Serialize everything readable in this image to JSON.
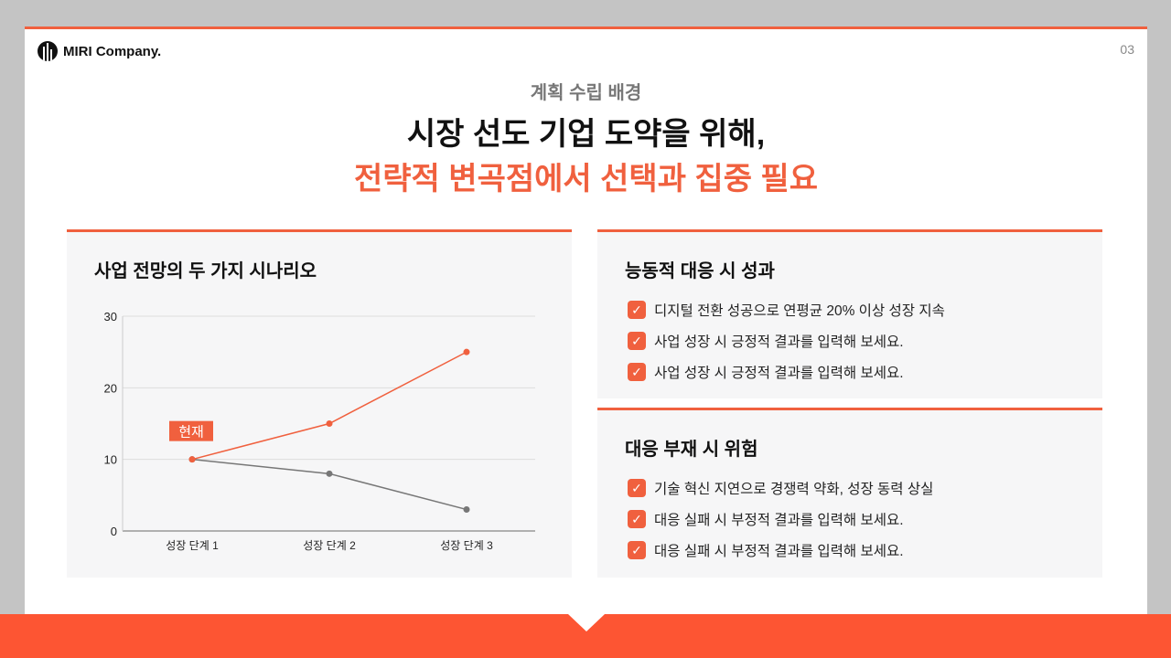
{
  "header": {
    "logo_text": "MIRI Company.",
    "page_number": "03"
  },
  "title": {
    "subtitle": "계획 수립 배경",
    "line1": "시장 선도 기업 도약을 위해,",
    "line2": "전략적 변곡점에서 선택과 집중 필요"
  },
  "chart_card": {
    "title": "사업 전망의 두 가지 시나리오"
  },
  "chart_data": {
    "type": "line",
    "categories": [
      "성장 단계 1",
      "성장 단계 2",
      "성장 단계 3"
    ],
    "series": [
      {
        "values": [
          10,
          15,
          25
        ],
        "color": "#f0603e"
      },
      {
        "values": [
          10,
          8,
          3
        ],
        "color": "#777777"
      }
    ],
    "yticks": [
      0,
      10,
      20,
      30
    ],
    "ylim": [
      0,
      30
    ],
    "grid": true,
    "annotation": {
      "text": "현재",
      "category": "성장 단계 1"
    }
  },
  "positive": {
    "title": "능동적 대응 시 성과",
    "items": [
      "디지털 전환 성공으로 연평균 20% 이상 성장 지속",
      "사업 성장 시 긍정적 결과를 입력해 보세요.",
      "사업 성장 시 긍정적 결과를 입력해 보세요."
    ]
  },
  "negative": {
    "title": "대응 부재 시 위험",
    "items": [
      "기술 혁신 지연으로 경쟁력 약화, 성장 동력 상실",
      "대응 실패 시 부정적 결과를 입력해 보세요.",
      "대응 실패 시 부정적 결과를 입력해 보세요."
    ]
  },
  "colors": {
    "accent": "#f0603e"
  }
}
